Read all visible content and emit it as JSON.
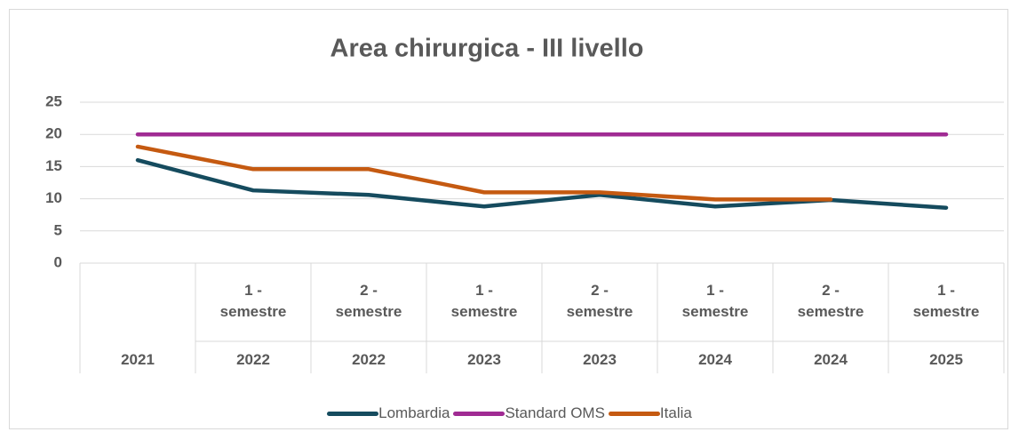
{
  "chart_data": {
    "type": "line",
    "title": "Area chirurgica - III livello",
    "categories": [
      "2021",
      "2022",
      "2022",
      "2023",
      "2023",
      "2024",
      "2024",
      "2025"
    ],
    "subcategories": [
      null,
      "1 - semestre",
      "2 - semestre",
      "1 - semestre",
      "2 - semestre",
      "1 - semestre",
      "2 - semestre",
      "1 - semestre"
    ],
    "series": [
      {
        "name": "Lombardia",
        "color": "#154b5e",
        "values": [
          16.0,
          11.3,
          10.6,
          8.8,
          10.6,
          8.8,
          9.8,
          8.6
        ]
      },
      {
        "name": "Standard OMS",
        "color": "#a02b93",
        "values": [
          20,
          20,
          20,
          20,
          20,
          20,
          20,
          20
        ]
      },
      {
        "name": "Italia",
        "color": "#c55a11",
        "values": [
          18.1,
          14.6,
          14.6,
          11.0,
          11.0,
          9.9,
          9.9,
          null
        ]
      }
    ],
    "ylim": [
      0,
      25
    ],
    "yticks": [
      0,
      5,
      10,
      15,
      20,
      25
    ],
    "grid": true,
    "legend": "bottom"
  }
}
